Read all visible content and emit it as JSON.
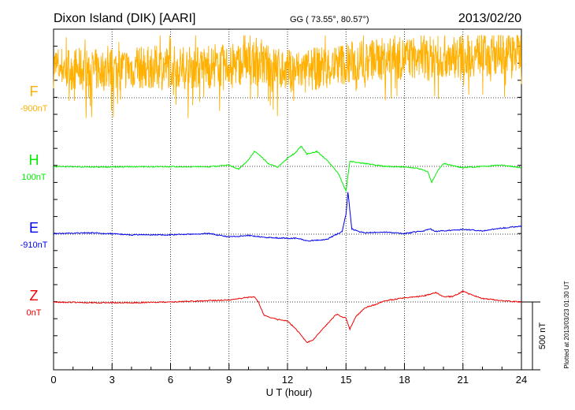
{
  "header": {
    "station": "Dixon Island (DIK)  [AARI]",
    "coords": "GG ( 73.55°,  80.57°)",
    "date": "2013/02/20"
  },
  "footer": {
    "plotted": "Plotted at 2013/03/23 01:30 UT",
    "scale_label": "500 nT"
  },
  "chart_data": {
    "type": "line",
    "title": "Dixon Island (DIK)  [AARI]",
    "subtitle": "GG ( 73.55°,  80.57°)",
    "date": "2013/02/20",
    "xlabel": "U T (hour)",
    "xlim": [
      0,
      24
    ],
    "xticks": [
      0,
      3,
      6,
      9,
      12,
      15,
      18,
      21,
      24
    ],
    "scale_bar_nT": 500,
    "series": [
      {
        "name": "F",
        "baseline_label": "-900nT",
        "baseline_nT": -900,
        "color": "#ffb000",
        "kind": "noisy",
        "low": 150,
        "high": 350,
        "noise": 160,
        "seed": 7,
        "points": [
          [
            0,
            230
          ],
          [
            2,
            200
          ],
          [
            4,
            220
          ],
          [
            6,
            230
          ],
          [
            8,
            220
          ],
          [
            9,
            240
          ],
          [
            10,
            260
          ],
          [
            12,
            200
          ],
          [
            13,
            200
          ],
          [
            14,
            230
          ],
          [
            16,
            280
          ],
          [
            18,
            290
          ],
          [
            20,
            300
          ],
          [
            22,
            320
          ],
          [
            24,
            340
          ]
        ]
      },
      {
        "name": "H",
        "baseline_label": "100nT",
        "baseline_nT": 100,
        "color": "#00ee00",
        "kind": "line",
        "points": [
          [
            0,
            0
          ],
          [
            2,
            -5
          ],
          [
            4,
            -3
          ],
          [
            6,
            -2
          ],
          [
            8,
            -3
          ],
          [
            9,
            10
          ],
          [
            9.5,
            -20
          ],
          [
            10,
            50
          ],
          [
            10.3,
            110
          ],
          [
            10.6,
            80
          ],
          [
            11,
            20
          ],
          [
            11.5,
            -5
          ],
          [
            12,
            60
          ],
          [
            12.4,
            100
          ],
          [
            12.7,
            150
          ],
          [
            13,
            90
          ],
          [
            13.5,
            110
          ],
          [
            14,
            50
          ],
          [
            14.6,
            -50
          ],
          [
            15,
            -180
          ],
          [
            15.2,
            40
          ],
          [
            15.5,
            30
          ],
          [
            16,
            20
          ],
          [
            17,
            0
          ],
          [
            18,
            -5
          ],
          [
            18.7,
            -15
          ],
          [
            19.2,
            -40
          ],
          [
            19.4,
            -120
          ],
          [
            19.7,
            -30
          ],
          [
            20,
            20
          ],
          [
            21,
            -10
          ],
          [
            22,
            0
          ],
          [
            23,
            10
          ],
          [
            24,
            -10
          ]
        ]
      },
      {
        "name": "E",
        "baseline_label": "-910nT",
        "baseline_nT": -910,
        "color": "#0000ee",
        "kind": "line",
        "points": [
          [
            0,
            5
          ],
          [
            2,
            10
          ],
          [
            4,
            -5
          ],
          [
            6,
            -5
          ],
          [
            8,
            5
          ],
          [
            9,
            -20
          ],
          [
            10,
            -10
          ],
          [
            11,
            -25
          ],
          [
            12,
            -30
          ],
          [
            12.5,
            -30
          ],
          [
            13,
            -50
          ],
          [
            14,
            -40
          ],
          [
            14.8,
            20
          ],
          [
            15,
            150
          ],
          [
            15.1,
            310
          ],
          [
            15.3,
            40
          ],
          [
            15.6,
            20
          ],
          [
            16,
            10
          ],
          [
            17,
            15
          ],
          [
            18,
            5
          ],
          [
            19,
            25
          ],
          [
            19.3,
            40
          ],
          [
            19.6,
            20
          ],
          [
            20,
            25
          ],
          [
            21,
            35
          ],
          [
            22,
            25
          ],
          [
            23,
            45
          ],
          [
            24,
            60
          ]
        ]
      },
      {
        "name": "Z",
        "baseline_label": "0nT",
        "baseline_nT": 0,
        "color": "#ee0000",
        "kind": "line",
        "points": [
          [
            0,
            0
          ],
          [
            2,
            -5
          ],
          [
            4,
            -5
          ],
          [
            6,
            0
          ],
          [
            8,
            10
          ],
          [
            9,
            15
          ],
          [
            10,
            35
          ],
          [
            10.3,
            35
          ],
          [
            10.5,
            0
          ],
          [
            10.8,
            -100
          ],
          [
            11.5,
            -130
          ],
          [
            12,
            -140
          ],
          [
            12.5,
            -210
          ],
          [
            13,
            -300
          ],
          [
            13.3,
            -280
          ],
          [
            13.8,
            -200
          ],
          [
            14.5,
            -90
          ],
          [
            15,
            -120
          ],
          [
            15.2,
            -200
          ],
          [
            15.5,
            -110
          ],
          [
            16,
            -40
          ],
          [
            16.5,
            -20
          ],
          [
            17,
            10
          ],
          [
            18,
            30
          ],
          [
            19,
            45
          ],
          [
            19.6,
            70
          ],
          [
            20,
            40
          ],
          [
            20.5,
            40
          ],
          [
            21,
            80
          ],
          [
            21.3,
            60
          ],
          [
            22,
            25
          ],
          [
            23,
            10
          ],
          [
            24,
            0
          ]
        ]
      }
    ]
  }
}
